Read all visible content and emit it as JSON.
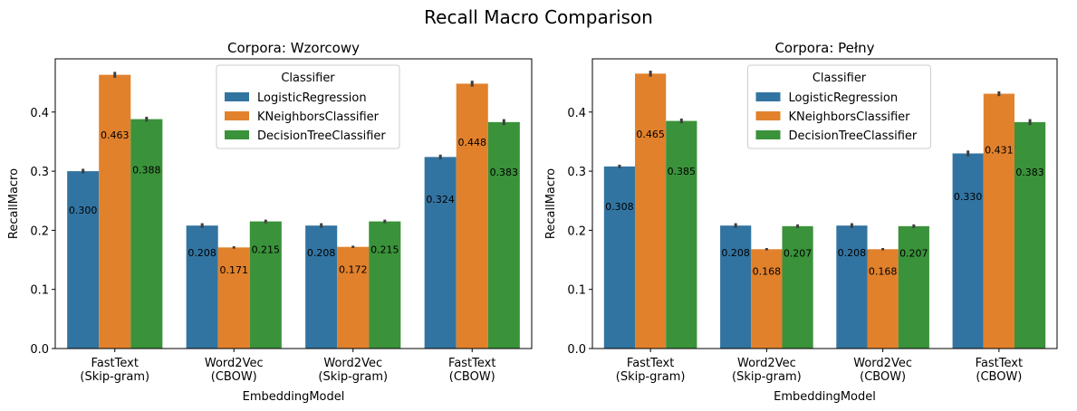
{
  "figure": {
    "title": "Recall Macro Comparison"
  },
  "colors": {
    "LogisticRegression": "#3274a1",
    "KNeighborsClassifier": "#e1812c",
    "DecisionTreeClassifier": "#3a923a",
    "errorbar": "#3f3f3f"
  },
  "chart_data": [
    {
      "type": "bar",
      "title": "Corpora: Wzorcowy",
      "xlabel": "EmbeddingModel",
      "ylabel": "RecallMacro",
      "ylim": [
        0,
        0.49
      ],
      "yticks": [
        "0.0",
        "0.1",
        "0.2",
        "0.3",
        "0.4"
      ],
      "ytick_values": [
        0,
        0.1,
        0.2,
        0.3,
        0.4
      ],
      "categories": [
        [
          "FastText",
          "(Skip-gram)"
        ],
        [
          "Word2Vec",
          "(CBOW)"
        ],
        [
          "Word2Vec",
          "(Skip-gram)"
        ],
        [
          "FastText",
          "(CBOW)"
        ]
      ],
      "legend": {
        "title": "Classifier",
        "placement": "upper center"
      },
      "series": [
        {
          "name": "LogisticRegression",
          "values": [
            0.3,
            0.208,
            0.208,
            0.324
          ],
          "labels": [
            "0.300",
            "0.208",
            "0.208",
            "0.324"
          ],
          "err": [
            0.004,
            0.004,
            0.004,
            0.004
          ]
        },
        {
          "name": "KNeighborsClassifier",
          "values": [
            0.463,
            0.171,
            0.172,
            0.448
          ],
          "labels": [
            "0.463",
            "0.171",
            "0.172",
            "0.448"
          ],
          "err": [
            0.005,
            0.002,
            0.002,
            0.005
          ]
        },
        {
          "name": "DecisionTreeClassifier",
          "values": [
            0.388,
            0.215,
            0.215,
            0.383
          ],
          "labels": [
            "0.388",
            "0.215",
            "0.215",
            "0.383"
          ],
          "err": [
            0.004,
            0.003,
            0.003,
            0.005
          ]
        }
      ]
    },
    {
      "type": "bar",
      "title": "Corpora: Pełny",
      "xlabel": "EmbeddingModel",
      "ylabel": "RecallMacro",
      "ylim": [
        0,
        0.49
      ],
      "yticks": [
        "0.0",
        "0.1",
        "0.2",
        "0.3",
        "0.4"
      ],
      "ytick_values": [
        0,
        0.1,
        0.2,
        0.3,
        0.4
      ],
      "categories": [
        [
          "FastText",
          "(Skip-gram)"
        ],
        [
          "Word2Vec",
          "(Skip-gram)"
        ],
        [
          "Word2Vec",
          "(CBOW)"
        ],
        [
          "FastText",
          "(CBOW)"
        ]
      ],
      "legend": {
        "title": "Classifier",
        "placement": "upper center"
      },
      "series": [
        {
          "name": "LogisticRegression",
          "values": [
            0.308,
            0.208,
            0.208,
            0.33
          ],
          "labels": [
            "0.308",
            "0.208",
            "0.208",
            "0.330"
          ],
          "err": [
            0.003,
            0.004,
            0.004,
            0.005
          ]
        },
        {
          "name": "KNeighborsClassifier",
          "values": [
            0.465,
            0.168,
            0.168,
            0.431
          ],
          "labels": [
            "0.465",
            "0.168",
            "0.168",
            "0.431"
          ],
          "err": [
            0.005,
            0.002,
            0.002,
            0.004
          ]
        },
        {
          "name": "DecisionTreeClassifier",
          "values": [
            0.385,
            0.207,
            0.207,
            0.383
          ],
          "labels": [
            "0.385",
            "0.207",
            "0.207",
            "0.383"
          ],
          "err": [
            0.004,
            0.003,
            0.003,
            0.005
          ]
        }
      ]
    }
  ]
}
